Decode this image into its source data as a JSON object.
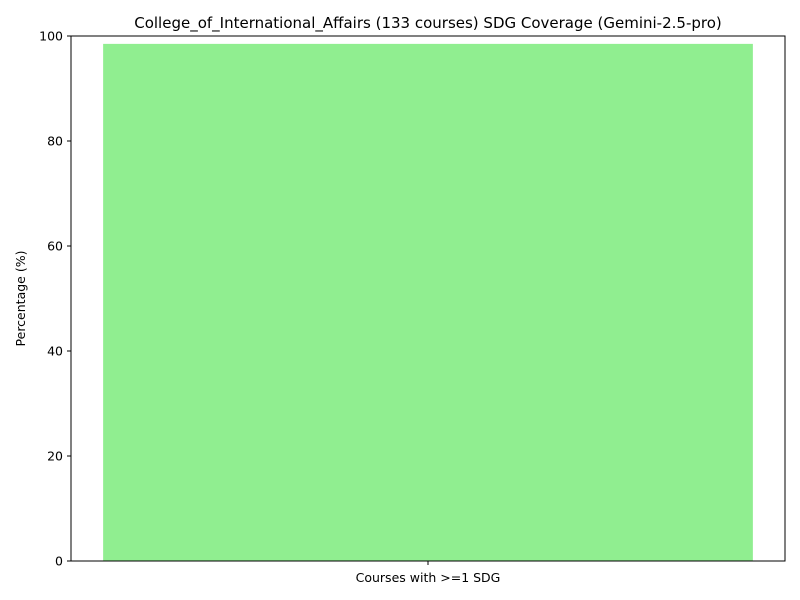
{
  "chart_data": {
    "type": "bar",
    "title": "College_of_International_Affairs (133 courses) SDG Coverage (Gemini-2.5-pro)",
    "xlabel": "",
    "ylabel": "Percentage (%)",
    "categories": [
      "Courses with >=1 SDG"
    ],
    "values": [
      98.5
    ],
    "ylim": [
      0,
      100
    ],
    "yticks": [
      0,
      20,
      40,
      60,
      80,
      100
    ],
    "bar_color": "#90ee90",
    "grid": false,
    "legend": "none"
  }
}
